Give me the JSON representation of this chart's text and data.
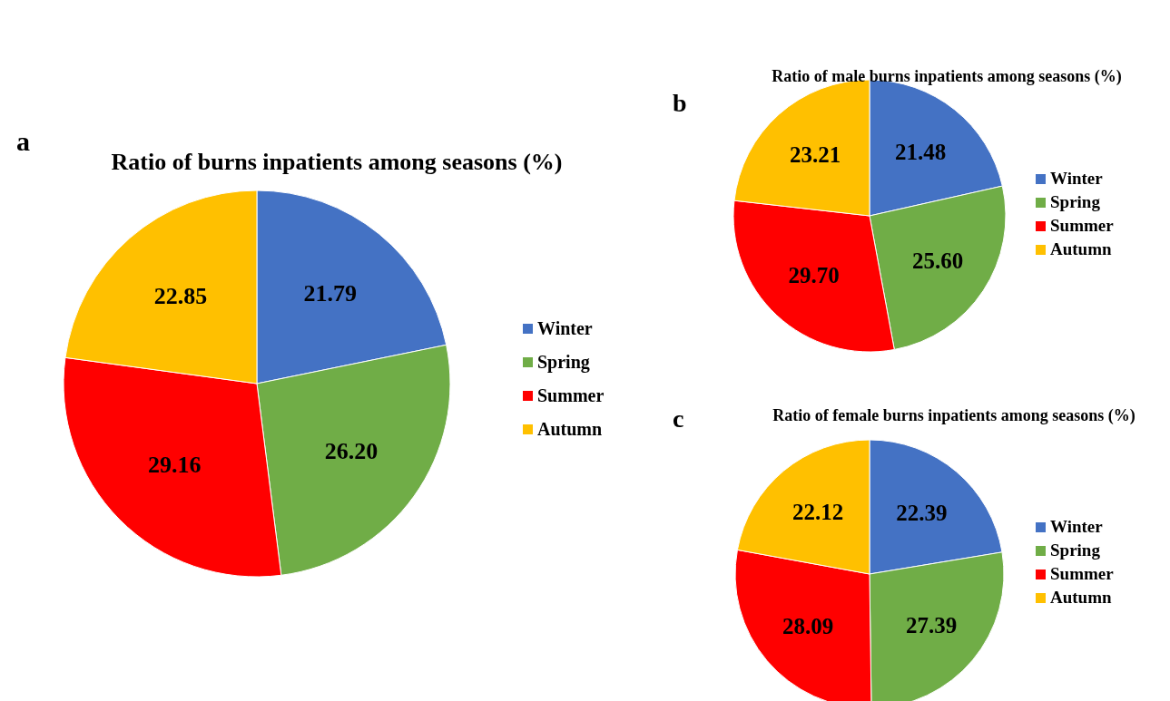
{
  "chart_data": [
    {
      "type": "pie",
      "title": "Ratio of burns inpatients among seasons (%)",
      "annotations": [
        "a"
      ],
      "categories": [
        "Winter",
        "Spring",
        "Summer",
        "Autumn"
      ],
      "values": [
        21.79,
        26.2,
        29.16,
        22.85
      ],
      "value_labels": [
        "21.79",
        "26.20",
        "29.16",
        "22.85"
      ],
      "colors": [
        "#4472c4",
        "#70ad47",
        "#ff0000",
        "#ffc000"
      ],
      "legend": "right"
    },
    {
      "type": "pie",
      "title": "Ratio of male burns inpatients among seasons (%)",
      "annotations": [
        "b"
      ],
      "categories": [
        "Winter",
        "Spring",
        "Summer",
        "Autumn"
      ],
      "values": [
        21.48,
        25.6,
        29.7,
        23.21
      ],
      "value_labels": [
        "21.48",
        "25.60",
        "29.70",
        "23.21"
      ],
      "colors": [
        "#4472c4",
        "#70ad47",
        "#ff0000",
        "#ffc000"
      ],
      "legend": "right"
    },
    {
      "type": "pie",
      "title": "Ratio of female burns inpatients among seasons (%)",
      "annotations": [
        "c"
      ],
      "categories": [
        "Winter",
        "Spring",
        "Summer",
        "Autumn"
      ],
      "values": [
        22.39,
        27.39,
        28.09,
        22.12
      ],
      "value_labels": [
        "22.39",
        "27.39",
        "28.09",
        "22.12"
      ],
      "colors": [
        "#4472c4",
        "#70ad47",
        "#ff0000",
        "#ffc000"
      ],
      "legend": "right"
    }
  ]
}
